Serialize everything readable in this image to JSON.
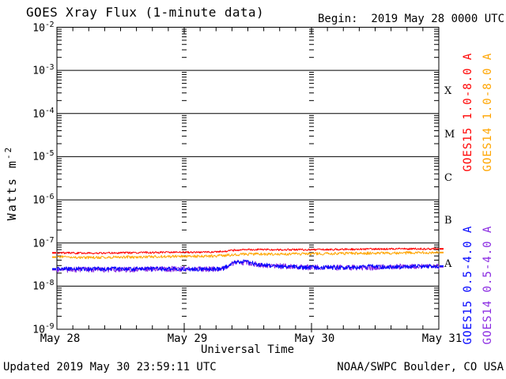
{
  "header": {
    "title": "GOES Xray Flux (1-minute data)",
    "begin_label": "Begin:  2019 May 28 0000 UTC"
  },
  "footer": {
    "updated": "Updated 2019 May 30 23:59:11 UTC",
    "source": "NOAA/SWPC Boulder, CO USA"
  },
  "chart_data": {
    "type": "line",
    "title": "GOES Xray Flux (1-minute data)",
    "subtitle": "Begin:  2019 May 28 0000 UTC",
    "xlabel": "Universal Time",
    "ylabel": {
      "text": "Watts m",
      "sup": "-2"
    },
    "y_scale": "log",
    "ylim": [
      1e-09,
      0.01
    ],
    "y_tick_exponents": [
      -2,
      -3,
      -4,
      -5,
      -6,
      -7,
      -8,
      -9
    ],
    "x_hours_range": [
      0,
      72
    ],
    "x_tick_hours": [
      0,
      24,
      48,
      72
    ],
    "x_tick_labels": [
      "May 28",
      "May 29",
      "May 30",
      "May 31"
    ],
    "x_minor_tick_hours_step": 3,
    "grid": "solid horizontal line each decade; log minor-tick columns at day boundaries",
    "legend_position": "rotated labels along right margin",
    "flare_classes": [
      {
        "label": "X",
        "flux_band": [
          0.0001,
          0.001
        ]
      },
      {
        "label": "M",
        "flux_band": [
          1e-05,
          0.0001
        ]
      },
      {
        "label": "C",
        "flux_band": [
          1e-06,
          1e-05
        ]
      },
      {
        "label": "B",
        "flux_band": [
          1e-07,
          1e-06
        ]
      },
      {
        "label": "A",
        "flux_band": [
          1e-08,
          1e-07
        ]
      }
    ],
    "series": [
      {
        "name": "GOES15 1.0-8.0 A",
        "label": "GOES15 1.0-8.0 A",
        "color": "#ff0000",
        "noise_decades": 0.022,
        "points": [
          [
            0,
            5.9e-08
          ],
          [
            6,
            5.8e-08
          ],
          [
            12,
            5.9e-08
          ],
          [
            18,
            6e-08
          ],
          [
            24,
            6.1e-08
          ],
          [
            30,
            6.2e-08
          ],
          [
            32,
            6.5e-08
          ],
          [
            34,
            6.9e-08
          ],
          [
            36,
            7e-08
          ],
          [
            42,
            7e-08
          ],
          [
            48,
            7e-08
          ],
          [
            54,
            7.1e-08
          ],
          [
            60,
            7.2e-08
          ],
          [
            66,
            7.3e-08
          ],
          [
            72,
            7.3e-08
          ]
        ]
      },
      {
        "name": "GOES14 1.0-8.0 A",
        "label": "GOES14 1.0-8.0 A",
        "color": "#ffa500",
        "noise_decades": 0.032,
        "points": [
          [
            0,
            4.7e-08
          ],
          [
            6,
            4.6e-08
          ],
          [
            12,
            4.7e-08
          ],
          [
            18,
            4.8e-08
          ],
          [
            24,
            4.9e-08
          ],
          [
            30,
            5e-08
          ],
          [
            32,
            5.2e-08
          ],
          [
            34,
            5.4e-08
          ],
          [
            36,
            5.5e-08
          ],
          [
            42,
            5.5e-08
          ],
          [
            48,
            5.6e-08
          ],
          [
            54,
            5.7e-08
          ],
          [
            60,
            5.8e-08
          ],
          [
            66,
            5.9e-08
          ],
          [
            72,
            6e-08
          ]
        ]
      },
      {
        "name": "GOES15 0.5-4.0 A",
        "label": "GOES15 0.5-4.0 A",
        "color": "#0000ff",
        "noise_decades": 0.05,
        "points": [
          [
            0,
            2.5e-08
          ],
          [
            6,
            2.5e-08
          ],
          [
            12,
            2.5e-08
          ],
          [
            18,
            2.5e-08
          ],
          [
            24,
            2.5e-08
          ],
          [
            30,
            2.5e-08
          ],
          [
            31.5,
            2.6e-08
          ],
          [
            33,
            3.4e-08
          ],
          [
            34.5,
            3.7e-08
          ],
          [
            36,
            3.6e-08
          ],
          [
            38,
            3.2e-08
          ],
          [
            40,
            3e-08
          ],
          [
            44,
            2.8e-08
          ],
          [
            48,
            2.7e-08
          ],
          [
            52,
            2.7e-08
          ],
          [
            56,
            2.7e-08
          ],
          [
            58.5,
            2.8e-08
          ],
          [
            59,
            3.3e-08
          ],
          [
            59.5,
            2.9e-08
          ],
          [
            62,
            2.8e-08
          ],
          [
            66,
            2.8e-08
          ],
          [
            70,
            2.9e-08
          ],
          [
            72,
            2.9e-08
          ]
        ]
      },
      {
        "name": "GOES14 0.5-4.0 A",
        "label": "GOES14 0.5-4.0 A",
        "color": "#8a2be2",
        "noise_decades": 0.065,
        "points": [
          [
            0,
            2.4e-08
          ],
          [
            6,
            2.4e-08
          ],
          [
            12,
            2.4e-08
          ],
          [
            18,
            2.5e-08
          ],
          [
            24,
            2.5e-08
          ],
          [
            30,
            2.5e-08
          ],
          [
            31.5,
            2.6e-08
          ],
          [
            33,
            3.3e-08
          ],
          [
            34.5,
            3.6e-08
          ],
          [
            36,
            3.5e-08
          ],
          [
            38,
            3.1e-08
          ],
          [
            40,
            3e-08
          ],
          [
            44,
            2.8e-08
          ],
          [
            48,
            2.7e-08
          ],
          [
            52,
            2.7e-08
          ],
          [
            56,
            2.7e-08
          ],
          [
            60,
            2.7e-08
          ],
          [
            64,
            2.8e-08
          ],
          [
            68,
            2.8e-08
          ],
          [
            72,
            2.8e-08
          ]
        ]
      }
    ]
  }
}
